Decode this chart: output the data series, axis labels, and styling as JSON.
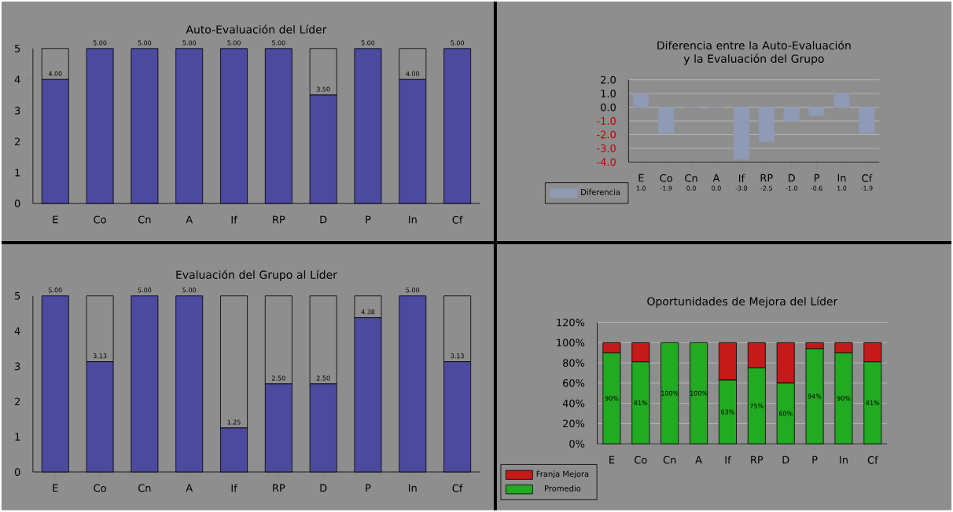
{
  "chart_data": [
    {
      "type": "bar",
      "title": "Auto-Evaluación del Líder",
      "categories": [
        "E",
        "Co",
        "Cn",
        "A",
        "If",
        "RP",
        "D",
        "P",
        "In",
        "Cf"
      ],
      "stacked": true,
      "series": [
        {
          "color": "#4b4a9e",
          "values": [
            4,
            5,
            5,
            5,
            5,
            5,
            3.5,
            5,
            4,
            5
          ],
          "value_labels": [
            "4.00",
            "5.00",
            "5.00",
            "5.00",
            "5.00",
            "5.00",
            "3.50",
            "5.00",
            "4.00",
            "5.00"
          ]
        },
        {
          "color": "#8e8e8e",
          "values": [
            1,
            0,
            0,
            0,
            0,
            0,
            1.5,
            0,
            1,
            0
          ]
        }
      ],
      "ylim": [
        0,
        5
      ],
      "yticks": [
        0,
        1,
        2,
        3,
        4,
        5
      ]
    },
    {
      "type": "bar",
      "title": "Diferencia entre la Auto-Evaluación y la Evaluación del Grupo",
      "categories": [
        "E",
        "Co",
        "Cn",
        "A",
        "If",
        "RP",
        "D",
        "P",
        "In",
        "Cf"
      ],
      "series": [
        {
          "name": "Diferencia",
          "color": "#8f9bb5",
          "values": [
            1.0,
            -1.9,
            0.0,
            0.0,
            -3.8,
            -2.5,
            -1.0,
            -0.6,
            1.0,
            -1.9
          ],
          "value_labels": [
            "1.0",
            "-1.9",
            "0.0",
            "0.0",
            "-3.8",
            "-2.5",
            "-1.0",
            "-0.6",
            "1.0",
            "-1.9"
          ]
        }
      ],
      "ylim": [
        -4,
        2
      ],
      "yticks": [
        {
          "value": -4,
          "label": "-4.0"
        },
        {
          "value": -3,
          "label": "-3.0"
        },
        {
          "value": -2,
          "label": "-2.0"
        },
        {
          "value": -1,
          "label": "-1.0"
        },
        {
          "value": 0,
          "label": "0.0"
        },
        {
          "value": 1,
          "label": "1.0"
        },
        {
          "value": 2,
          "label": "2.0"
        }
      ],
      "grid": "y",
      "legend": "bottom left"
    },
    {
      "type": "bar",
      "title": "Evaluación del Grupo al Líder",
      "categories": [
        "E",
        "Co",
        "Cn",
        "A",
        "If",
        "RP",
        "D",
        "P",
        "In",
        "Cf"
      ],
      "stacked": true,
      "series": [
        {
          "color": "#4b4a9e",
          "values": [
            5,
            3.13,
            5,
            5,
            1.25,
            2.5,
            2.5,
            4.38,
            5,
            3.13
          ],
          "value_labels": [
            "5.00",
            "3.13",
            "5.00",
            "5.00",
            "1.25",
            "2.50",
            "2.50",
            "4.38",
            "5.00",
            "3.13"
          ]
        },
        {
          "color": "#8e8e8e",
          "values": [
            0,
            1.87,
            0,
            0,
            3.75,
            2.5,
            2.5,
            0.62,
            0,
            1.87
          ]
        }
      ],
      "ylim": [
        0,
        5
      ],
      "yticks": [
        0,
        1,
        2,
        3,
        4,
        5
      ]
    },
    {
      "type": "bar",
      "title": "Oportunidades de Mejora del Líder",
      "categories": [
        "E",
        "Co",
        "Cn",
        "A",
        "If",
        "RP",
        "D",
        "P",
        "In",
        "Cf"
      ],
      "stacked": true,
      "series": [
        {
          "name": "Promedio",
          "color": "#22aa22",
          "values": [
            90,
            81,
            100,
            100,
            63,
            75,
            60,
            94,
            90,
            81
          ],
          "value_labels": [
            "90%",
            "81%",
            "100%",
            "100%",
            "63%",
            "75%",
            "60%",
            "94%",
            "90%",
            "81%"
          ]
        },
        {
          "name": "Franja Mejora",
          "color": "#c41a1a",
          "values": [
            10,
            19,
            0,
            0,
            37,
            25,
            40,
            6,
            10,
            19
          ]
        }
      ],
      "ylim": [
        0,
        120
      ],
      "yticks": [
        {
          "value": 0,
          "label": "0%"
        },
        {
          "value": 20,
          "label": "20%"
        },
        {
          "value": 40,
          "label": "40%"
        },
        {
          "value": 60,
          "label": "60%"
        },
        {
          "value": 80,
          "label": "80%"
        },
        {
          "value": 100,
          "label": "100%"
        },
        {
          "value": 120,
          "label": "120%"
        }
      ],
      "grid": "y",
      "legend": "bottom left"
    }
  ]
}
